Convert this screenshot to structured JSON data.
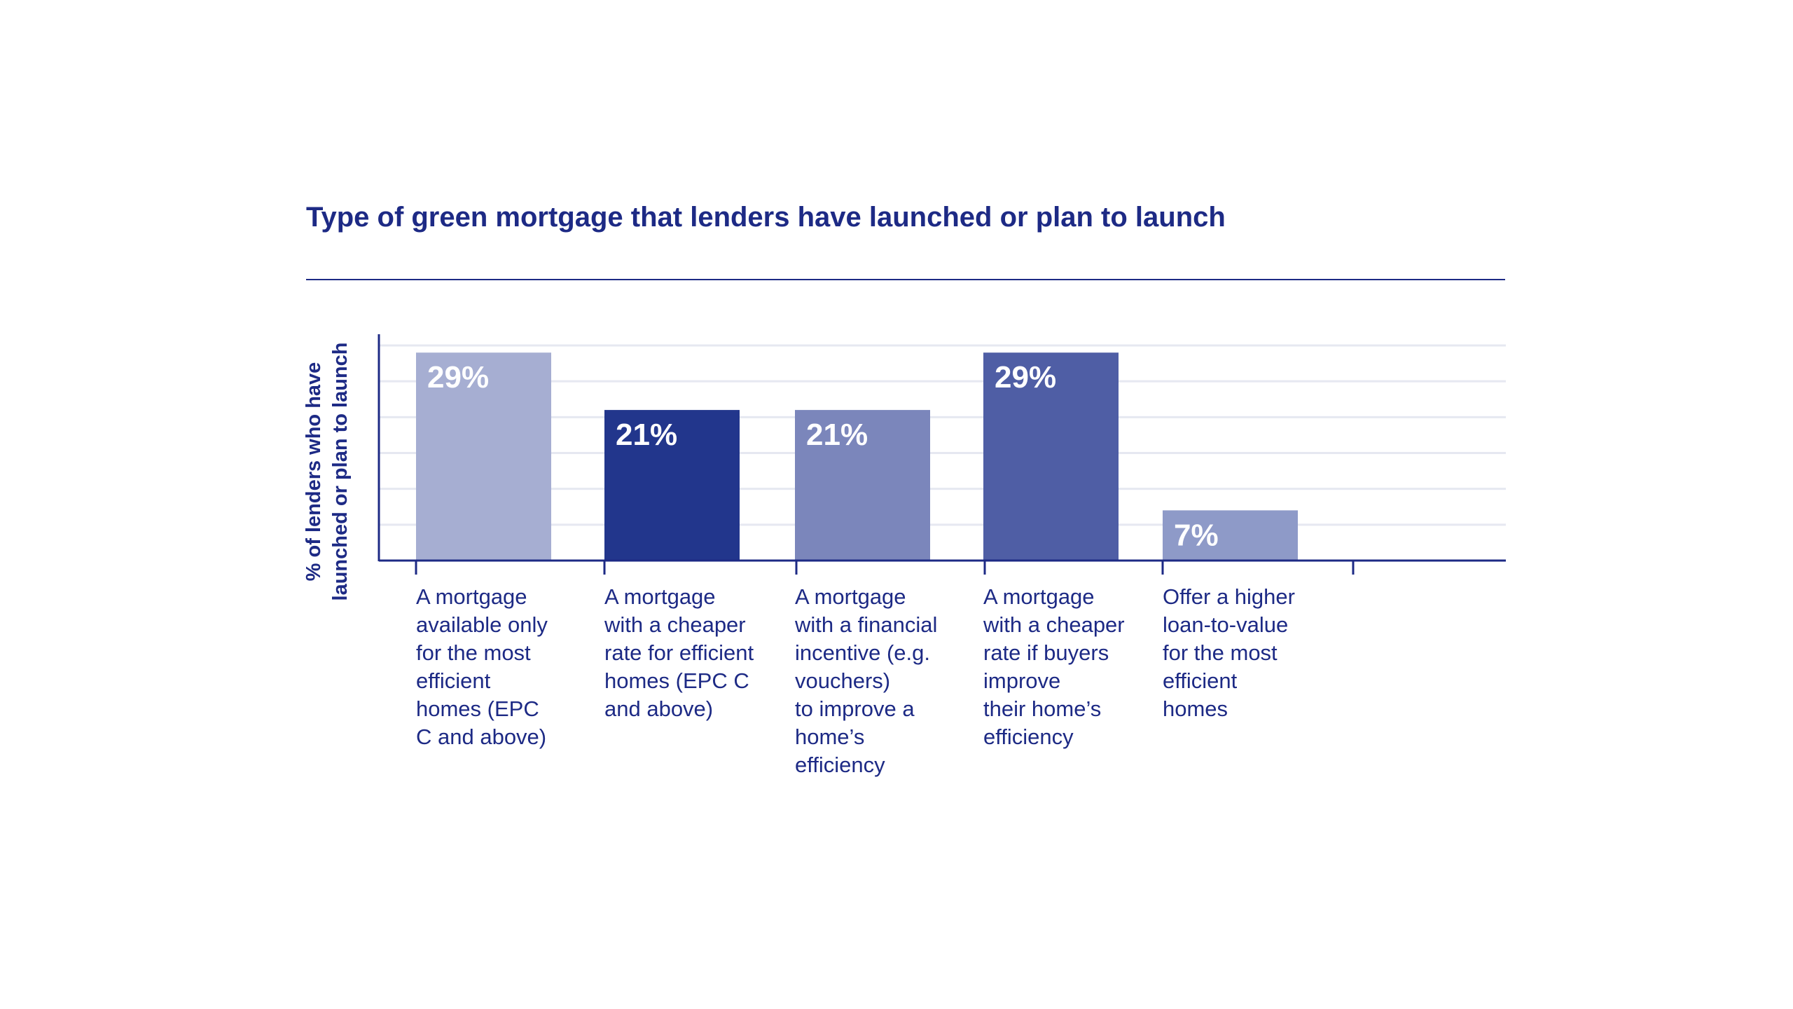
{
  "chart_data": {
    "type": "bar",
    "title": "Type of green mortgage that lenders have launched or plan to launch",
    "ylabel_lines": [
      "% of lenders who have",
      "launched or plan to launch"
    ],
    "xlabel": "",
    "categories": [
      "A mortgage available only for the most efficient homes (EPC C and above)",
      "A mortgage with a cheaper rate for efficient homes (EPC C and above)",
      "A mortgage with a financial incentive (e.g. vouchers) to improve a home’s efficiency",
      "A mortgage with a cheaper rate if buyers improve their home’s efficiency",
      "Offer a higher loan-to-value for the most efficient homes"
    ],
    "category_lines": [
      [
        "A mortgage",
        "available only",
        "for the most",
        "efficient",
        "homes (EPC",
        "C and above)"
      ],
      [
        "A mortgage",
        "with a cheaper",
        "rate for efficient",
        "homes (EPC C",
        "and above)"
      ],
      [
        "A mortgage",
        "with a financial",
        "incentive (e.g.",
        "vouchers)",
        "to improve a",
        "home’s",
        "efficiency"
      ],
      [
        "A mortgage",
        "with a cheaper",
        "rate if buyers",
        "improve",
        "their home’s",
        "efficiency"
      ],
      [
        "Offer a higher",
        "loan-to-value",
        "for the most",
        "efficient",
        "homes"
      ]
    ],
    "values": [
      29,
      21,
      21,
      29,
      7
    ],
    "value_labels": [
      "29%",
      "21%",
      "21%",
      "29%",
      "7%"
    ],
    "bar_colors": [
      "#a6aed2",
      "#22368c",
      "#7b86bb",
      "#4f5ea5",
      "#8e9ac8"
    ],
    "ylim": [
      0,
      30
    ],
    "grid_step": 5,
    "grid": true,
    "y_tick_labels_shown": false,
    "legend": "none"
  },
  "colors": {
    "text": "#1d2a85",
    "grid": "#e6e8f1",
    "axis": "#1d2a85"
  }
}
